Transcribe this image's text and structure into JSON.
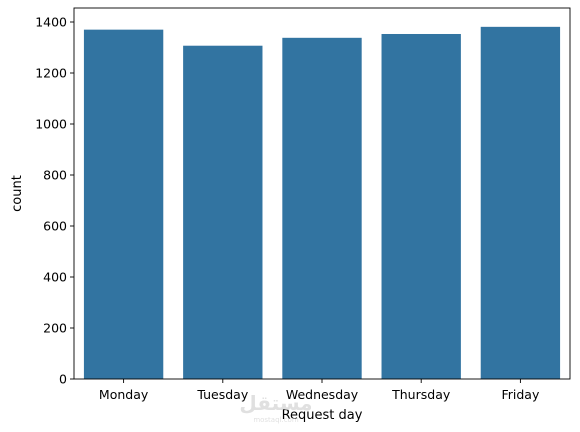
{
  "chart_data": {
    "type": "bar",
    "categories": [
      "Monday",
      "Tuesday",
      "Wednesday",
      "Thursday",
      "Friday"
    ],
    "values": [
      1370,
      1307,
      1338,
      1353,
      1381
    ],
    "xlabel": "Request day",
    "ylabel": "count",
    "ylim": [
      0,
      1400
    ],
    "yticks": [
      0,
      200,
      400,
      600,
      800,
      1000,
      1200,
      1400
    ],
    "bar_color": "#3274a1",
    "grid": false,
    "legend": "none"
  },
  "watermark": {
    "main_text": "ﻣﺴﺘﻘﻞ",
    "sub_text": "mostaql.com"
  }
}
